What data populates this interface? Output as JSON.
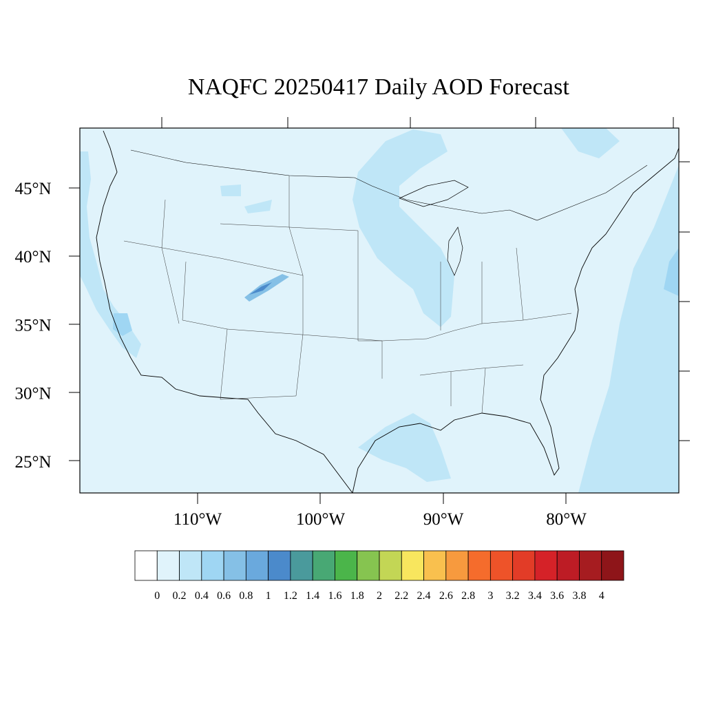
{
  "title": "NAQFC 20250417 Daily AOD Forecast",
  "map": {
    "lat_ticks": [
      {
        "value": 45,
        "label": "45°N"
      },
      {
        "value": 40,
        "label": "40°N"
      },
      {
        "value": 35,
        "label": "35°N"
      },
      {
        "value": 30,
        "label": "30°N"
      },
      {
        "value": 25,
        "label": "25°N"
      }
    ],
    "lon_ticks": [
      {
        "value": -110,
        "label": "110°W"
      },
      {
        "value": -100,
        "label": "100°W"
      },
      {
        "value": -90,
        "label": "90°W"
      },
      {
        "value": -80,
        "label": "80°W"
      }
    ],
    "background_color": "#e0f3fb"
  },
  "colorbar": {
    "labels": [
      "0",
      "0.2",
      "0.4",
      "0.6",
      "0.8",
      "1",
      "1.2",
      "1.4",
      "1.6",
      "1.8",
      "2",
      "2.2",
      "2.4",
      "2.6",
      "2.8",
      "3",
      "3.2",
      "3.4",
      "3.6",
      "3.8",
      "4"
    ],
    "colors": [
      "#ffffff",
      "#e0f3fb",
      "#bfe6f7",
      "#9fd6f3",
      "#85c0e6",
      "#6aa9dd",
      "#4b8acb",
      "#4a9a9c",
      "#48a874",
      "#4bb54a",
      "#86c450",
      "#c3d655",
      "#f8e65e",
      "#f9c04e",
      "#f79a3e",
      "#f56c2c",
      "#ee5329",
      "#e23c27",
      "#d52228",
      "#bd1c25",
      "#a61c20",
      "#8e1519"
    ]
  }
}
